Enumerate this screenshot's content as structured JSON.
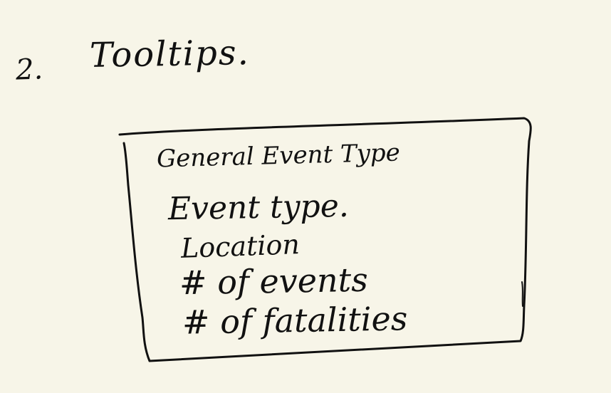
{
  "heading": {
    "number": "2.",
    "title": "Tooltips."
  },
  "tooltip_sketch": {
    "lines": [
      "General Event Type",
      "Event type.",
      "Location",
      "# of events",
      "# of fatalities"
    ]
  }
}
